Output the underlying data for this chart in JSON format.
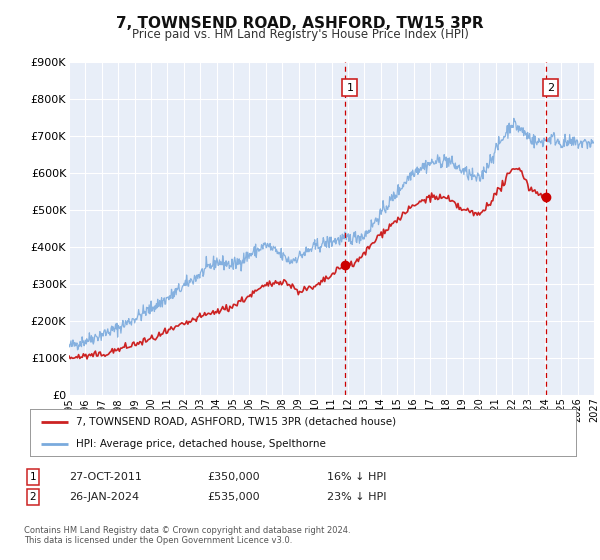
{
  "title": "7, TOWNSEND ROAD, ASHFORD, TW15 3PR",
  "subtitle": "Price paid vs. HM Land Registry's House Price Index (HPI)",
  "ylim": [
    0,
    900000
  ],
  "xlim_start": 1995.0,
  "xlim_end": 2027.0,
  "yticks": [
    0,
    100000,
    200000,
    300000,
    400000,
    500000,
    600000,
    700000,
    800000,
    900000
  ],
  "ytick_labels": [
    "£0",
    "£100K",
    "£200K",
    "£300K",
    "£400K",
    "£500K",
    "£600K",
    "£700K",
    "£800K",
    "£900K"
  ],
  "xticks": [
    1995,
    1996,
    1997,
    1998,
    1999,
    2000,
    2001,
    2002,
    2003,
    2004,
    2005,
    2006,
    2007,
    2008,
    2009,
    2010,
    2011,
    2012,
    2013,
    2014,
    2015,
    2016,
    2017,
    2018,
    2019,
    2020,
    2021,
    2022,
    2023,
    2024,
    2025,
    2026,
    2027
  ],
  "plot_bg_color": "#e8eef8",
  "grid_color": "#ffffff",
  "sale1_x": 2011.82,
  "sale1_y": 350000,
  "sale2_x": 2024.07,
  "sale2_y": 535000,
  "vline1_x": 2011.82,
  "vline2_x": 2024.07,
  "hpi_color": "#7aaadd",
  "price_color": "#cc2222",
  "sale_dot_color": "#cc0000",
  "legend_label_price": "7, TOWNSEND ROAD, ASHFORD, TW15 3PR (detached house)",
  "legend_label_hpi": "HPI: Average price, detached house, Spelthorne",
  "annotation1_label": "1",
  "annotation2_label": "2",
  "annotation1_date": "27-OCT-2011",
  "annotation1_price": "£350,000",
  "annotation1_hpi": "16% ↓ HPI",
  "annotation2_date": "26-JAN-2024",
  "annotation2_price": "£535,000",
  "annotation2_hpi": "23% ↓ HPI",
  "footer1": "Contains HM Land Registry data © Crown copyright and database right 2024.",
  "footer2": "This data is licensed under the Open Government Licence v3.0."
}
